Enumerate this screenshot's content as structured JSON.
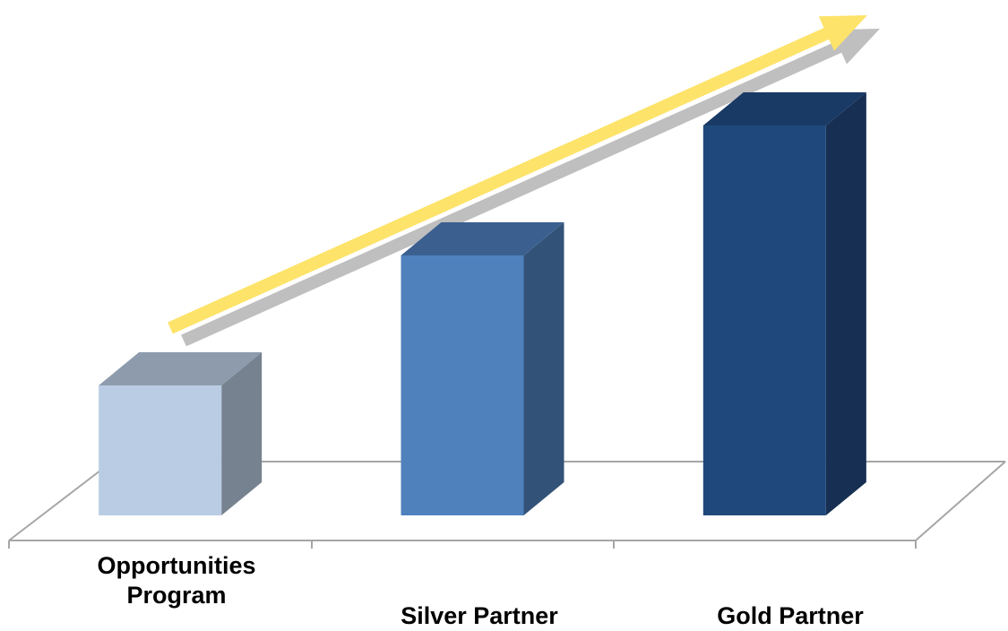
{
  "chart_data": {
    "type": "bar",
    "style": "3d-column",
    "title": "",
    "xlabel": "",
    "ylabel": "",
    "categories": [
      "Opportunities Program",
      "Silver Partner",
      "Gold Partner"
    ],
    "category_lines": [
      [
        "Opportunities",
        "Program"
      ],
      [
        "Silver Partner"
      ],
      [
        "Gold Partner"
      ]
    ],
    "values": [
      1,
      2,
      3
    ],
    "ylim": [
      0,
      3
    ],
    "grid": false,
    "legend": "none",
    "trend_arrow": "increasing",
    "colors": {
      "bars": [
        "#b9cce4",
        "#4f81bd",
        "#1f497d"
      ],
      "bar_sides": [
        "#76828f",
        "#335278",
        "#162f52"
      ],
      "bar_tops": [
        "#8d9bad",
        "#3b6090",
        "#1a3a66"
      ],
      "arrow": "#fde36a",
      "arrow_shadow": "#bfbfbf",
      "floor_line": "#a6a6a6"
    }
  }
}
